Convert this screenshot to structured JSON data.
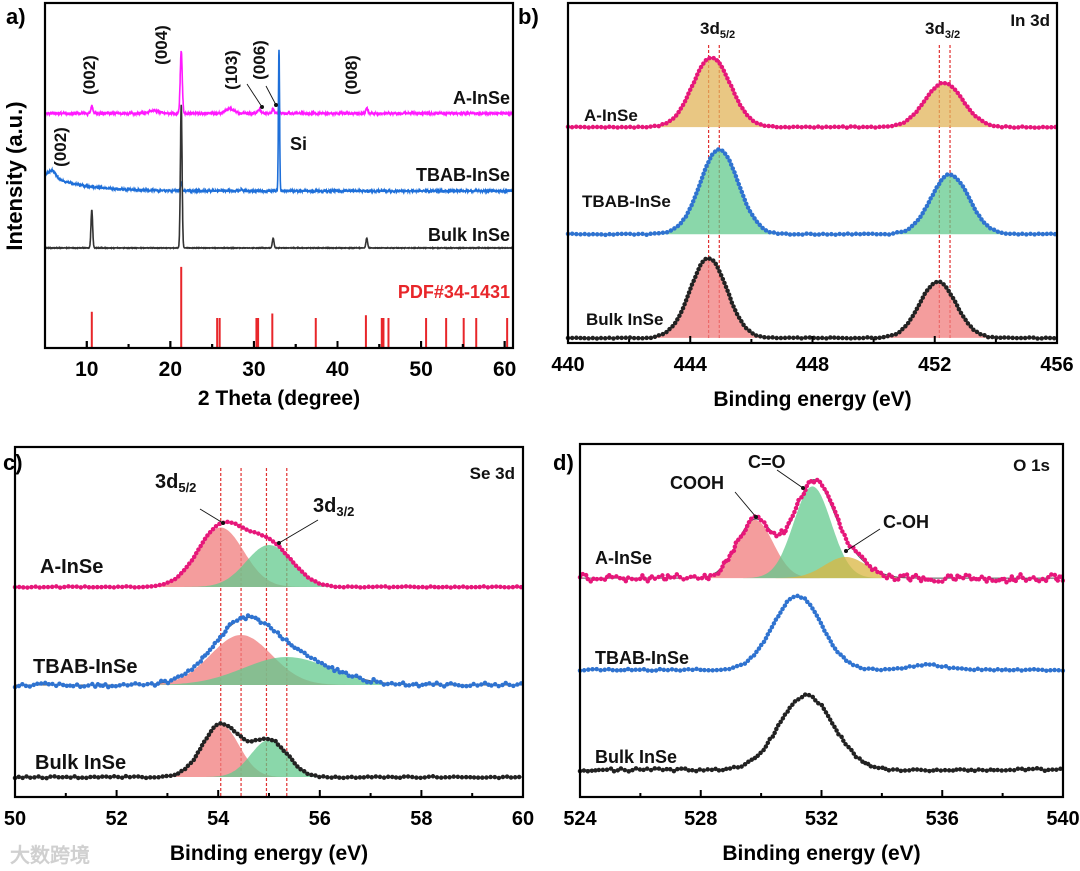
{
  "watermark": "大数跨境",
  "chart_data": [
    {
      "panel": "a)",
      "type": "line",
      "xlabel": "2 Theta (degree)",
      "ylabel": "Intensity (a.u.)",
      "xlim": [
        5,
        61
      ],
      "ylim": [
        0,
        10
      ],
      "xticks": [
        10,
        20,
        30,
        40,
        50,
        60
      ],
      "minor_step": 5,
      "annotations": [
        "(002)",
        "(004)",
        "(103)",
        "(006)",
        "(008)",
        "(002)",
        "Si"
      ],
      "series": [
        {
          "name": "A-InSe",
          "color": "#ff19ff",
          "baseline": 6.8,
          "noise": 0.03,
          "peaks": [
            [
              10.6,
              0.22,
              0.12
            ],
            [
              18.0,
              0.08,
              0.6
            ],
            [
              21.3,
              1.8,
              0.12
            ],
            [
              27.1,
              0.14,
              0.5
            ],
            [
              30.6,
              0.1,
              0.2
            ],
            [
              32.3,
              0.12,
              0.15
            ],
            [
              33.0,
              0.15,
              0.08
            ],
            [
              43.5,
              0.15,
              0.12
            ]
          ]
        },
        {
          "name": "TBAB-InSe",
          "color": "#1e6fd9",
          "baseline": 4.55,
          "noise": 0.03,
          "decay": [
            0.5,
            4
          ],
          "peaks": [
            [
              5.9,
              0.2,
              0.4
            ],
            [
              21.3,
              0.25,
              0.08
            ],
            [
              28.5,
              0.05,
              0.1
            ],
            [
              33.0,
              4.1,
              0.07
            ]
          ]
        },
        {
          "name": "Bulk InSe",
          "color": "#333333",
          "baseline": 2.9,
          "noise": 0.005,
          "peaks": [
            [
              10.6,
              1.1,
              0.1
            ],
            [
              21.3,
              4.15,
              0.1
            ],
            [
              32.3,
              0.28,
              0.1
            ],
            [
              43.5,
              0.28,
              0.1
            ]
          ]
        }
      ],
      "sticks": {
        "name": "PDF#34-1431",
        "color": "#e8262a",
        "positions": [
          10.6,
          21.3,
          25.6,
          25.9,
          30.3,
          30.5,
          32.2,
          37.4,
          43.4,
          45.3,
          45.5,
          46.1,
          50.6,
          53.0,
          55.1,
          56.6,
          60.3
        ],
        "heights": [
          1.05,
          2.35,
          0.87,
          0.87,
          0.87,
          0.87,
          1.0,
          0.87,
          0.95,
          0.87,
          0.87,
          0.87,
          0.87,
          0.87,
          0.87,
          0.87,
          0.87
        ]
      }
    },
    {
      "panel": "b)",
      "type": "line",
      "xlabel": "Binding energy (eV)",
      "xlim": [
        440,
        456
      ],
      "ylim": [
        0,
        10
      ],
      "xticks": [
        440,
        444,
        448,
        452,
        456
      ],
      "minor_step": 2,
      "title": "In 3d",
      "annotations": [
        {
          "text": "3d",
          "sub": "5/2"
        },
        {
          "text": "3d",
          "sub": "3/2"
        }
      ],
      "reference_lines": [
        444.6,
        444.95,
        452.15,
        452.5
      ],
      "series": [
        {
          "name": "A-InSe",
          "color": "#e6177a",
          "fill": "#e2b45a",
          "baseline": 6.35,
          "noise": 0.02,
          "peaks": [
            [
              444.7,
              2.05,
              0.62
            ],
            [
              452.3,
              1.3,
              0.62
            ]
          ]
        },
        {
          "name": "TBAB-InSe",
          "color": "#2f73d0",
          "fill": "#63c98d",
          "baseline": 3.2,
          "noise": 0.02,
          "peaks": [
            [
              444.95,
              2.5,
              0.62
            ],
            [
              452.5,
              1.76,
              0.62
            ]
          ]
        },
        {
          "name": "Bulk InSe",
          "color": "#222222",
          "fill": "#f07c7c",
          "baseline": 0.15,
          "noise": 0.02,
          "peaks": [
            [
              444.6,
              2.35,
              0.6
            ],
            [
              452.1,
              1.65,
              0.6
            ]
          ]
        }
      ]
    },
    {
      "panel": "c)",
      "type": "line",
      "xlabel": "Binding energy (eV)",
      "xlim": [
        50,
        60
      ],
      "ylim": [
        0,
        10
      ],
      "xticks": [
        50,
        52,
        54,
        56,
        58,
        60
      ],
      "minor_step": 1,
      "title": "Se 3d",
      "annotations": [
        {
          "text": "3d",
          "sub": "5/2"
        },
        {
          "text": "3d",
          "sub": "3/2"
        }
      ],
      "reference_lines": [
        54.05,
        54.45,
        54.95,
        55.35
      ],
      "series": [
        {
          "name": "A-InSe",
          "color": "#e6177a",
          "baseline": 6.0,
          "noise": 0.02,
          "components": [
            {
              "center": 54.05,
              "height": 1.7,
              "sigma": 0.45,
              "color": "#f07c7c"
            },
            {
              "center": 55.0,
              "height": 1.2,
              "sigma": 0.45,
              "color": "#63c98d"
            }
          ]
        },
        {
          "name": "TBAB-InSe",
          "color": "#2f73d0",
          "baseline": 3.2,
          "noise": 0.07,
          "components": [
            {
              "center": 54.45,
              "height": 1.43,
              "sigma": 0.6,
              "color": "#f07c7c"
            },
            {
              "center": 55.35,
              "height": 0.8,
              "sigma": 0.85,
              "color": "#63c98d"
            }
          ]
        },
        {
          "name": "Bulk InSe",
          "color": "#222222",
          "baseline": 0.57,
          "noise": 0.03,
          "components": [
            {
              "center": 54.05,
              "height": 1.5,
              "sigma": 0.36,
              "color": "#f07c7c"
            },
            {
              "center": 55.0,
              "height": 1.06,
              "sigma": 0.36,
              "color": "#63c98d"
            }
          ]
        }
      ]
    },
    {
      "panel": "d)",
      "type": "line",
      "xlabel": "Binding energy (eV)",
      "xlim": [
        524,
        540
      ],
      "ylim": [
        0,
        10
      ],
      "xticks": [
        524,
        528,
        532,
        536,
        540
      ],
      "minor_step": 2,
      "title": "O 1s",
      "annotations": [
        "COOH",
        "C=O",
        "C-OH"
      ],
      "series": [
        {
          "name": "A-InSe",
          "color": "#e6177a",
          "baseline": 6.2,
          "noise": 0.12,
          "components": [
            {
              "center": 529.8,
              "height": 1.65,
              "sigma": 0.6,
              "color": "#f07c7c"
            },
            {
              "center": 531.7,
              "height": 2.6,
              "sigma": 0.62,
              "color": "#63c98d"
            },
            {
              "center": 532.8,
              "height": 0.6,
              "sigma": 0.7,
              "color": "#d9b640"
            }
          ]
        },
        {
          "name": "TBAB-InSe",
          "color": "#2f73d0",
          "baseline": 3.6,
          "noise": 0.03,
          "peaks": [
            [
              531.2,
              2.1,
              0.8
            ],
            [
              535.5,
              0.15,
              0.6
            ]
          ]
        },
        {
          "name": "Bulk InSe",
          "color": "#222222",
          "baseline": 0.77,
          "noise": 0.05,
          "peaks": [
            [
              531.5,
              2.1,
              0.9
            ]
          ]
        }
      ]
    }
  ]
}
